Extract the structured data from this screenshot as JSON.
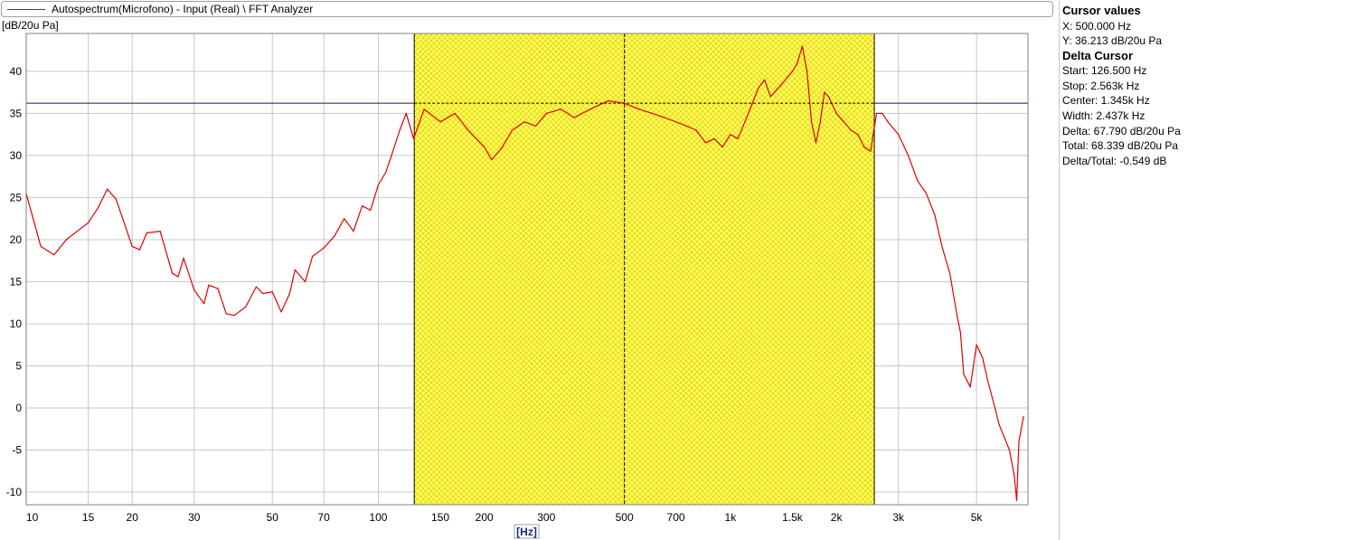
{
  "legend": {
    "label": "Autospectrum(Microfono) - Input (Real) \\ FFT Analyzer",
    "color": "#e00000"
  },
  "side_panel": {
    "cursor_title": "Cursor values",
    "cursor_x": "X: 500.000 Hz",
    "cursor_y": "Y: 36.213 dB/20u Pa",
    "delta_title": "Delta Cursor",
    "start": "Start: 126.500 Hz",
    "stop": "Stop: 2.563k Hz",
    "center": "Center: 1.345k Hz",
    "width": "Width: 2.437k Hz",
    "delta": "Delta: 67.790 dB/20u Pa",
    "total": "Total: 68.339 dB/20u Pa",
    "delta_total": "Delta/Total: -0.549 dB"
  },
  "chart_data": {
    "type": "line",
    "xscale": "log",
    "ylabel": "dB/20u Pa",
    "xlabel": "Hz",
    "xlim": [
      10,
      7000
    ],
    "ylim": [
      -11.5,
      44.5
    ],
    "x_ticks": [
      {
        "v": 10,
        "label": "10"
      },
      {
        "v": 15,
        "label": "15"
      },
      {
        "v": 20,
        "label": "20"
      },
      {
        "v": 30,
        "label": "30"
      },
      {
        "v": 50,
        "label": "50"
      },
      {
        "v": 70,
        "label": "70"
      },
      {
        "v": 100,
        "label": "100"
      },
      {
        "v": 150,
        "label": "150"
      },
      {
        "v": 200,
        "label": "200"
      },
      {
        "v": 300,
        "label": "300"
      },
      {
        "v": 500,
        "label": "500"
      },
      {
        "v": 700,
        "label": "700"
      },
      {
        "v": 1000,
        "label": "1k"
      },
      {
        "v": 1500,
        "label": "1.5k"
      },
      {
        "v": 2000,
        "label": "2k"
      },
      {
        "v": 3000,
        "label": "3k"
      },
      {
        "v": 5000,
        "label": "5k"
      }
    ],
    "y_ticks": [
      -10,
      -5,
      0,
      5,
      10,
      15,
      20,
      25,
      30,
      35,
      40
    ],
    "grid": true,
    "delta_region": {
      "start": 126.5,
      "stop": 2563,
      "fill": "#ffff66",
      "hatch": "#e6d200"
    },
    "cursor": {
      "x": 500,
      "y": 36.213
    },
    "series": [
      {
        "color": "#e00000",
        "points": [
          [
            10,
            25.5
          ],
          [
            11,
            19.2
          ],
          [
            12,
            18.2
          ],
          [
            13,
            20.0
          ],
          [
            15,
            22.0
          ],
          [
            16,
            23.8
          ],
          [
            17,
            26.0
          ],
          [
            18,
            24.8
          ],
          [
            20,
            19.2
          ],
          [
            21,
            18.8
          ],
          [
            22,
            20.8
          ],
          [
            24,
            21.0
          ],
          [
            26,
            16.0
          ],
          [
            27,
            15.6
          ],
          [
            28,
            17.8
          ],
          [
            30,
            14.0
          ],
          [
            32,
            12.4
          ],
          [
            33,
            14.6
          ],
          [
            35,
            14.2
          ],
          [
            37,
            11.2
          ],
          [
            39,
            11.0
          ],
          [
            42,
            12.0
          ],
          [
            45,
            14.4
          ],
          [
            47,
            13.6
          ],
          [
            50,
            13.8
          ],
          [
            53,
            11.4
          ],
          [
            56,
            13.6
          ],
          [
            58,
            16.4
          ],
          [
            62,
            15.0
          ],
          [
            65,
            18.0
          ],
          [
            70,
            19.0
          ],
          [
            75,
            20.4
          ],
          [
            80,
            22.5
          ],
          [
            85,
            21.0
          ],
          [
            90,
            24.0
          ],
          [
            95,
            23.5
          ],
          [
            100,
            26.5
          ],
          [
            105,
            28.0
          ],
          [
            110,
            30.5
          ],
          [
            115,
            33.0
          ],
          [
            120,
            35.0
          ],
          [
            126,
            32.0
          ],
          [
            135,
            35.5
          ],
          [
            150,
            34.0
          ],
          [
            165,
            35.0
          ],
          [
            180,
            33.0
          ],
          [
            200,
            31.0
          ],
          [
            210,
            29.5
          ],
          [
            225,
            31.0
          ],
          [
            240,
            33.0
          ],
          [
            260,
            34.0
          ],
          [
            280,
            33.5
          ],
          [
            300,
            35.0
          ],
          [
            330,
            35.5
          ],
          [
            360,
            34.5
          ],
          [
            400,
            35.5
          ],
          [
            450,
            36.5
          ],
          [
            500,
            36.2
          ],
          [
            550,
            35.5
          ],
          [
            600,
            35.0
          ],
          [
            650,
            34.5
          ],
          [
            700,
            34.0
          ],
          [
            750,
            33.5
          ],
          [
            800,
            33.0
          ],
          [
            850,
            31.5
          ],
          [
            900,
            32.0
          ],
          [
            950,
            31.0
          ],
          [
            1000,
            32.5
          ],
          [
            1050,
            32.0
          ],
          [
            1100,
            34.0
          ],
          [
            1150,
            36.0
          ],
          [
            1200,
            38.0
          ],
          [
            1250,
            39.0
          ],
          [
            1300,
            37.0
          ],
          [
            1400,
            38.5
          ],
          [
            1500,
            40.0
          ],
          [
            1550,
            41.0
          ],
          [
            1600,
            43.0
          ],
          [
            1650,
            40.0
          ],
          [
            1700,
            34.0
          ],
          [
            1750,
            31.5
          ],
          [
            1800,
            34.0
          ],
          [
            1850,
            37.5
          ],
          [
            1900,
            37.0
          ],
          [
            2000,
            35.0
          ],
          [
            2100,
            34.0
          ],
          [
            2200,
            33.0
          ],
          [
            2300,
            32.5
          ],
          [
            2400,
            31.0
          ],
          [
            2500,
            30.5
          ],
          [
            2600,
            35.0
          ],
          [
            2700,
            35.0
          ],
          [
            2800,
            34.0
          ],
          [
            3000,
            32.5
          ],
          [
            3200,
            30.0
          ],
          [
            3400,
            27.0
          ],
          [
            3600,
            25.5
          ],
          [
            3800,
            23.0
          ],
          [
            4000,
            19.0
          ],
          [
            4200,
            16.0
          ],
          [
            4400,
            11.0
          ],
          [
            4500,
            9.0
          ],
          [
            4600,
            4.0
          ],
          [
            4800,
            2.5
          ],
          [
            5000,
            7.5
          ],
          [
            5200,
            6.0
          ],
          [
            5400,
            3.0
          ],
          [
            5600,
            0.5
          ],
          [
            5800,
            -2.0
          ],
          [
            6000,
            -3.5
          ],
          [
            6200,
            -5.0
          ],
          [
            6400,
            -8.0
          ],
          [
            6500,
            -11.0
          ],
          [
            6600,
            -4.0
          ],
          [
            6800,
            -1.0
          ]
        ]
      }
    ]
  }
}
